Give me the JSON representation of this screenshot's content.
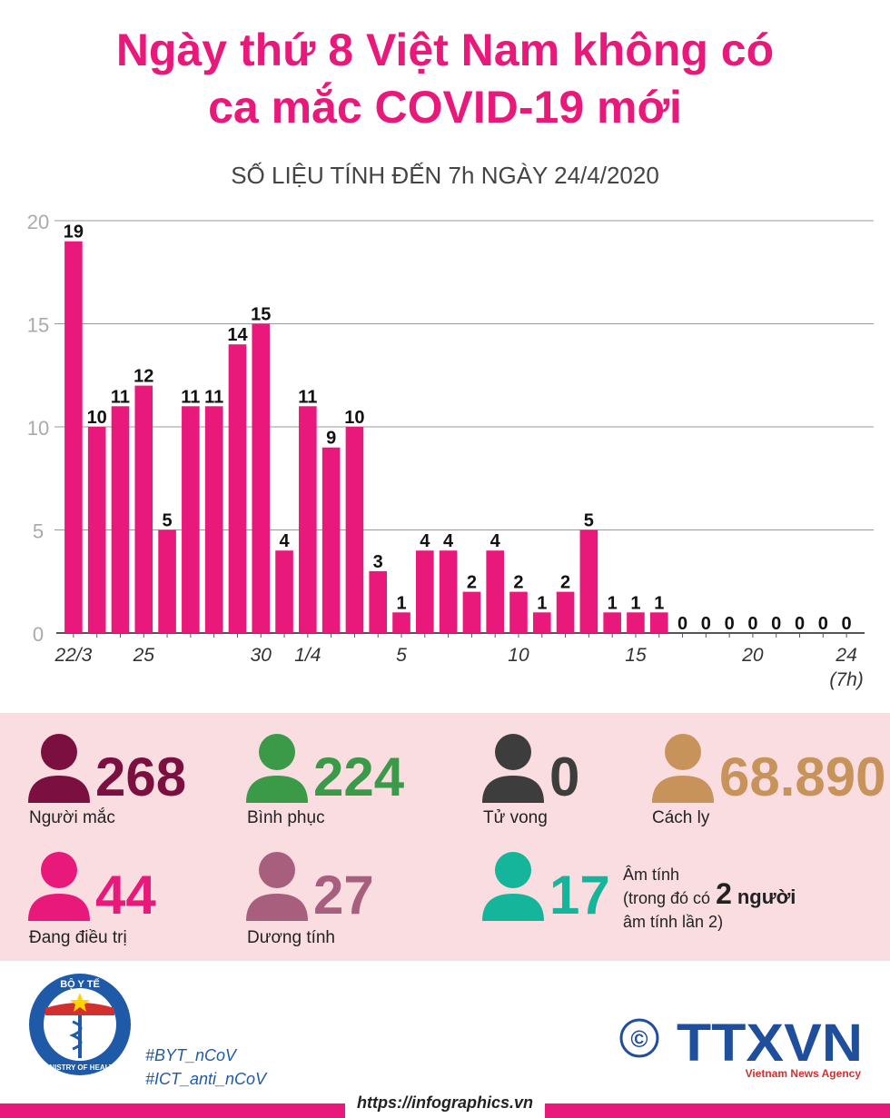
{
  "chart_data": {
    "type": "bar",
    "title": [
      "Ngày thứ 8 Việt Nam không có",
      "ca mắc COVID-19 mới"
    ],
    "subtitle": "SỐ LIỆU TÍNH ĐẾN 7h NGÀY 24/4/2020",
    "categories": [
      "22/3",
      null,
      null,
      "25",
      null,
      null,
      null,
      null,
      "30",
      null,
      "1/4",
      null,
      null,
      null,
      "5",
      null,
      null,
      null,
      null,
      "10",
      null,
      null,
      null,
      null,
      "15",
      null,
      null,
      null,
      null,
      "20",
      null,
      null,
      null,
      "24"
    ],
    "last_category_note": "(7h)",
    "values": [
      19,
      10,
      11,
      12,
      5,
      11,
      11,
      14,
      15,
      4,
      11,
      9,
      10,
      3,
      1,
      4,
      4,
      2,
      4,
      2,
      1,
      2,
      5,
      1,
      1,
      1,
      0,
      0,
      0,
      0,
      0,
      0,
      0,
      0
    ],
    "color": "#e8197a",
    "ylim": [
      0,
      20
    ],
    "yticks": [
      0,
      5,
      10,
      15,
      20
    ],
    "grid": true
  },
  "stats": [
    {
      "value": "268",
      "label": "Người mắc",
      "color": "#7b1040"
    },
    {
      "value": "224",
      "label": "Bình phục",
      "color": "#3a9a48"
    },
    {
      "value": "0",
      "label": "Tử vong",
      "color": "#3d3d3d"
    },
    {
      "value": "68.890",
      "label": "Cách ly",
      "color": "#c8935a"
    },
    {
      "value": "44",
      "label": "Đang điều trị",
      "color": "#e8197a"
    },
    {
      "value": "27",
      "label": "Dương tính",
      "color": "#a85f7d"
    },
    {
      "value": "17",
      "color": "#14b59a",
      "note": {
        "head": "Âm tính",
        "pre": "(trong đó có",
        "count": "2",
        "post": "người",
        "tail": "âm tính lần 2)"
      }
    }
  ],
  "footer": {
    "ministry_top": "BỘ Y TẾ",
    "ministry_bottom": "MINISTRY OF HEALTH",
    "hashtags": [
      "#BYT_nCoV",
      "#ICT_anti_nCoV"
    ],
    "copyright": "©",
    "agency": "TTXVN",
    "agency_full": "Vietnam News Agency",
    "url": "https://infographics.vn"
  }
}
